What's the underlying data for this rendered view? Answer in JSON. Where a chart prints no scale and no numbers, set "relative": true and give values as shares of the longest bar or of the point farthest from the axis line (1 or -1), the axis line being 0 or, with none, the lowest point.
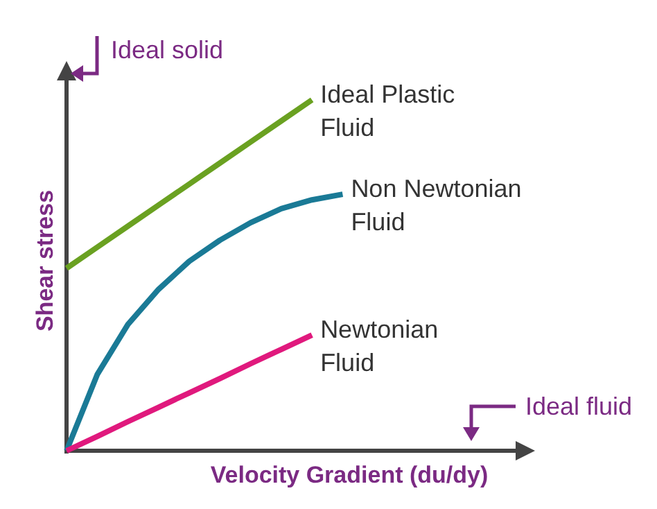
{
  "chart_data": {
    "type": "line",
    "relative": true,
    "xlabel": "Velocity Gradient (du/dy)",
    "ylabel": "Shear stress",
    "annotations": [
      "Ideal solid",
      "Ideal fluid"
    ],
    "legend": false,
    "marker": "none",
    "categories": [
      null,
      null,
      null,
      null,
      null,
      null,
      null,
      null,
      null,
      null,
      null,
      null,
      null,
      null,
      null,
      null
    ],
    "series": [
      {
        "name": "Ideal Plastic Fluid",
        "color": "#6aa121",
        "values": [
          0.52,
          0.58,
          0.64,
          0.7,
          0.76,
          0.82,
          0.88,
          0.94,
          1,
          null,
          null,
          null,
          null,
          null,
          null,
          null
        ]
      },
      {
        "name": "Non Newtonian Fluid",
        "color": "#1a7a96",
        "values": [
          0,
          0.217,
          0.36,
          0.46,
          0.54,
          0.6,
          0.65,
          0.69,
          0.715,
          0.731,
          null,
          null,
          null,
          null,
          null,
          null
        ]
      },
      {
        "name": "Newtonian Fluid",
        "color": "#e0197d",
        "values": [
          0,
          0.041,
          0.083,
          0.124,
          0.165,
          0.206,
          0.248,
          0.289,
          0.33,
          null,
          null,
          null,
          null,
          null,
          null,
          null
        ]
      }
    ]
  }
}
